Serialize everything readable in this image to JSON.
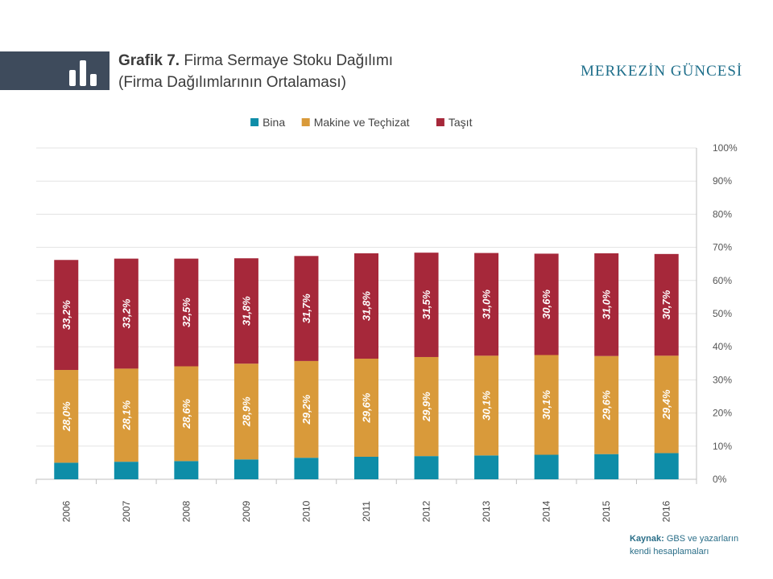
{
  "header": {
    "title_bold": "Grafik 7.",
    "title_rest": " Firma Sermaye Stoku Dağılımı",
    "title_line2": "(Firma Dağılımlarının Ortalaması)",
    "brand": "MERKEZİN GÜNCESİ",
    "icon": "bar-chart-icon"
  },
  "source": {
    "label": "Kaynak:",
    "line1_rest": " GBS ve yazarların",
    "line2": "kendi hesaplamaları"
  },
  "colors": {
    "bina": "#0e8da8",
    "makine": "#d99a3a",
    "tasit": "#a6283a",
    "header_bar": "#3e4b5c",
    "brand": "#1f6f8b"
  },
  "chart_data": {
    "type": "bar",
    "stacked": true,
    "categories": [
      "2006",
      "2007",
      "2008",
      "2009",
      "2010",
      "2011",
      "2012",
      "2013",
      "2014",
      "2015",
      "2016"
    ],
    "series": [
      {
        "name": "Bina",
        "values": [
          5.0,
          5.3,
          5.5,
          6.0,
          6.5,
          6.8,
          7.0,
          7.2,
          7.4,
          7.6,
          7.9
        ]
      },
      {
        "name": "Makine ve Teçhizat",
        "values": [
          28.0,
          28.1,
          28.6,
          28.9,
          29.2,
          29.6,
          29.9,
          30.1,
          30.1,
          29.6,
          29.4
        ],
        "labels": [
          "28,0%",
          "28,1%",
          "28,6%",
          "28,9%",
          "29,2%",
          "29,6%",
          "29,9%",
          "30,1%",
          "30,1%",
          "29,6%",
          "29,4%"
        ]
      },
      {
        "name": "Taşıt",
        "values": [
          33.2,
          33.2,
          32.5,
          31.8,
          31.7,
          31.8,
          31.5,
          31.0,
          30.6,
          31.0,
          30.7
        ],
        "labels": [
          "33,2%",
          "33,2%",
          "32,5%",
          "31,8%",
          "31,7%",
          "31,8%",
          "31,5%",
          "31,0%",
          "30,6%",
          "31,0%",
          "30,7%"
        ]
      }
    ],
    "ylim": [
      0,
      100
    ],
    "yticks": [
      "0%",
      "10%",
      "20%",
      "30%",
      "40%",
      "50%",
      "60%",
      "70%",
      "80%",
      "90%",
      "100%"
    ],
    "y_axis_side": "right",
    "grid": true,
    "legend": "top-center",
    "xlabel": "",
    "ylabel": ""
  }
}
